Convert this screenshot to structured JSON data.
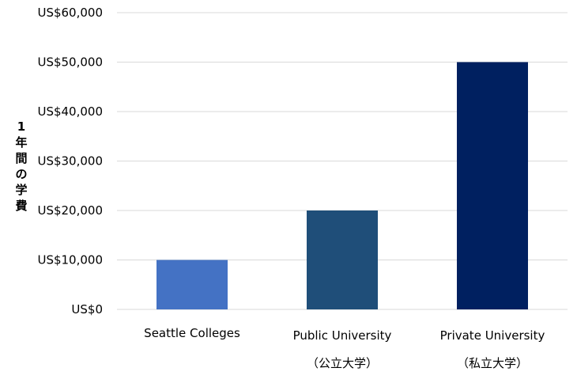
{
  "chart_data": {
    "type": "bar",
    "title": "",
    "xlabel": "",
    "ylabel": "1年間の学費",
    "categories": [
      [
        "Seattle Colleges"
      ],
      [
        "Public University",
        "（公立大学）"
      ],
      [
        "Private University",
        "（私立大学）"
      ]
    ],
    "values": [
      10000,
      20000,
      50000
    ],
    "bar_colors": [
      "#4472C4",
      "#1F4E79",
      "#002060"
    ],
    "ylim": [
      0,
      60000
    ],
    "yticks": [
      0,
      10000,
      20000,
      30000,
      40000,
      50000,
      60000
    ],
    "ytick_labels": [
      "US$0",
      "US$10,000",
      "US$20,000",
      "US$30,000",
      "US$40,000",
      "US$50,000",
      "US$60,000"
    ],
    "grid": true,
    "legend": "none",
    "grid_color": "#d9d9d9"
  }
}
